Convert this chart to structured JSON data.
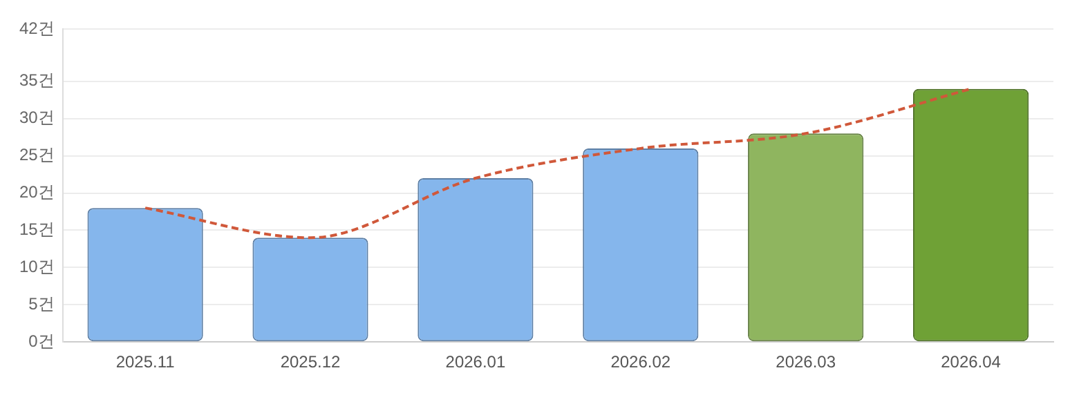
{
  "chart_data": {
    "type": "bar",
    "categories": [
      "2025.11",
      "2025.12",
      "2026.01",
      "2026.02",
      "2026.03",
      "2026.04"
    ],
    "series": [
      {
        "values": [
          18,
          14,
          22,
          26,
          28,
          34
        ],
        "colors": [
          "#85b6ec",
          "#85b6ec",
          "#85b6ec",
          "#85b6ec",
          "#8fb55f",
          "#6fa136"
        ]
      },
      {
        "type": "line",
        "color": "#d0583a",
        "values": [
          18,
          14,
          22,
          26,
          28,
          34
        ],
        "line_style": "dashed",
        "marker": "none"
      }
    ],
    "ylim": [
      0,
      42
    ],
    "yticks": [
      {
        "value": 0,
        "label": "0건"
      },
      {
        "value": 5,
        "label": "5건"
      },
      {
        "value": 10,
        "label": "10건"
      },
      {
        "value": 15,
        "label": "15건"
      },
      {
        "value": 20,
        "label": "20건"
      },
      {
        "value": 25,
        "label": "25건"
      },
      {
        "value": 30,
        "label": "30건"
      },
      {
        "value": 35,
        "label": "35건"
      },
      {
        "value": 42,
        "label": "42건"
      }
    ],
    "grid": "y",
    "legend": false
  }
}
